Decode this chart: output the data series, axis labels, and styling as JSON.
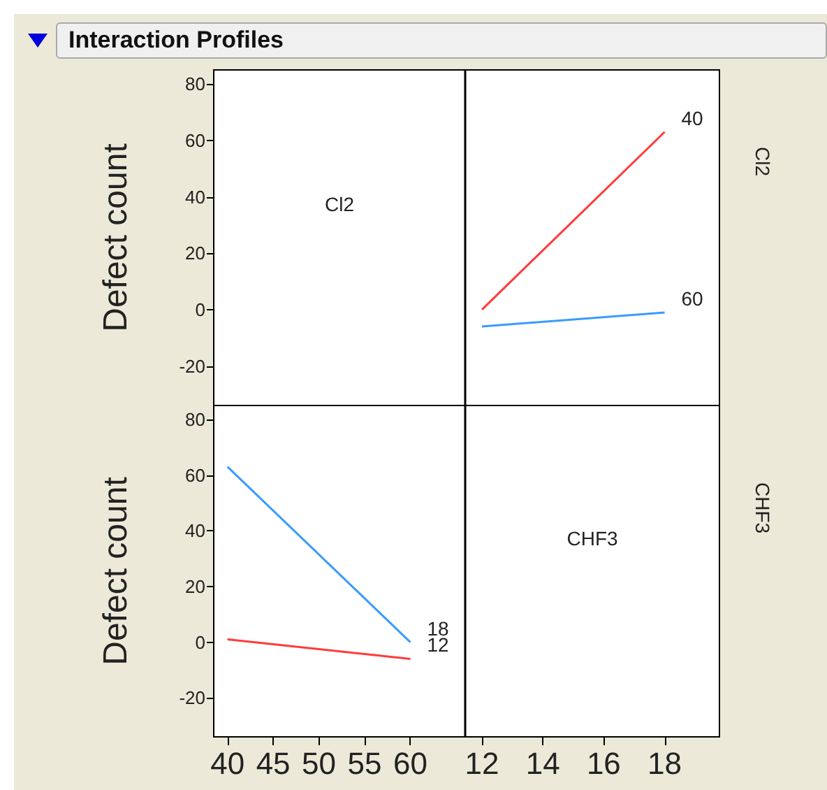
{
  "chart_data": [
    {
      "type": "line",
      "title": "Interaction Profiles",
      "ylabel": "Defect count",
      "y2label": "Cl2",
      "xlim": [
        3.19,
        19.8
      ],
      "xticks": [
        12,
        14,
        16,
        18
      ],
      "ylim": [
        -34,
        85
      ],
      "yticks": [
        -20,
        0,
        20,
        40,
        60,
        80
      ],
      "tick_labels": "y",
      "annotations": [
        "Cl2"
      ],
      "ref_lines": [
        {
          "axis": "x",
          "value": 11.45,
          "color": "#000000"
        }
      ],
      "x": [
        12,
        18
      ],
      "series": [
        {
          "name": "40",
          "color": "#ff3b3b",
          "values": [
            0,
            63
          ]
        },
        {
          "name": "60",
          "color": "#3a9bff",
          "values": [
            -6,
            -1
          ]
        }
      ]
    },
    {
      "type": "line",
      "ylabel": "Defect count",
      "y2label": "CHF3",
      "xlim": [
        38.5,
        93.8
      ],
      "xticks": [
        40,
        45,
        50,
        55,
        60
      ],
      "x2lim": [
        3.19,
        19.8
      ],
      "x2ticks": [
        12,
        14,
        16,
        18
      ],
      "ylim": [
        -34,
        85
      ],
      "yticks": [
        -20,
        0,
        20,
        40,
        60,
        80
      ],
      "annotations": [
        "CHF3"
      ],
      "ref_lines": [
        {
          "axis": "x",
          "value": 66,
          "color": "#000000"
        }
      ],
      "x": [
        40,
        60
      ],
      "series": [
        {
          "name": "18",
          "color": "#3a9bff",
          "values": [
            63,
            0
          ]
        },
        {
          "name": "12",
          "color": "#ff3b3b",
          "values": [
            1,
            -6
          ]
        }
      ]
    }
  ]
}
